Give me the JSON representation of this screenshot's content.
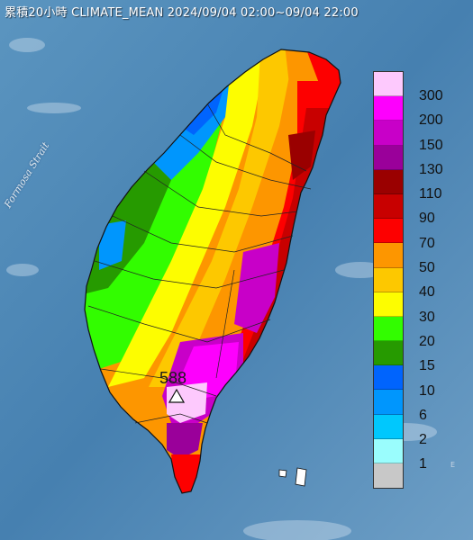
{
  "title": "累積20小時 CLIMATE_MEAN 2024/09/04 02:00~09/04 22:00",
  "strait_label": "Formosa Strait",
  "legend": {
    "unit_values": [
      "300",
      "200",
      "150",
      "130",
      "110",
      "90",
      "70",
      "50",
      "40",
      "30",
      "20",
      "15",
      "10",
      "6",
      "2",
      "1"
    ],
    "colors": [
      "#fdc9fd",
      "#fd00fd",
      "#c800c8",
      "#9a009a",
      "#9a0000",
      "#c80000",
      "#fd0000",
      "#fd9600",
      "#fdc800",
      "#fdfd00",
      "#32fd00",
      "#269a00",
      "#0064fd",
      "#0096fd",
      "#00c8fd",
      "#9afdfd",
      "#c8c8c8"
    ]
  },
  "max_station": {
    "value": "588",
    "icon": "triangle-station-icon"
  },
  "corner_mark": "E"
}
